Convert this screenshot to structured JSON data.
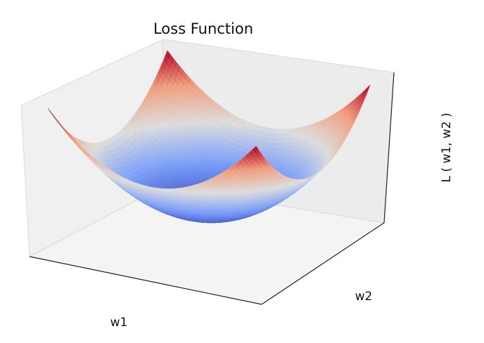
{
  "chart_data": {
    "type": "surface",
    "title": "Loss Function",
    "xlabel": "w1",
    "ylabel": "w2",
    "zlabel": "L ( w1, w2 )",
    "function": "w1^2 + w2^2",
    "w1_range": [
      -1,
      1
    ],
    "w2_range": [
      -1,
      1
    ],
    "colormap": "coolwarm",
    "grid_resolution": 100,
    "axis_ticks": "hidden",
    "pane_color": "#f2f2f2"
  }
}
